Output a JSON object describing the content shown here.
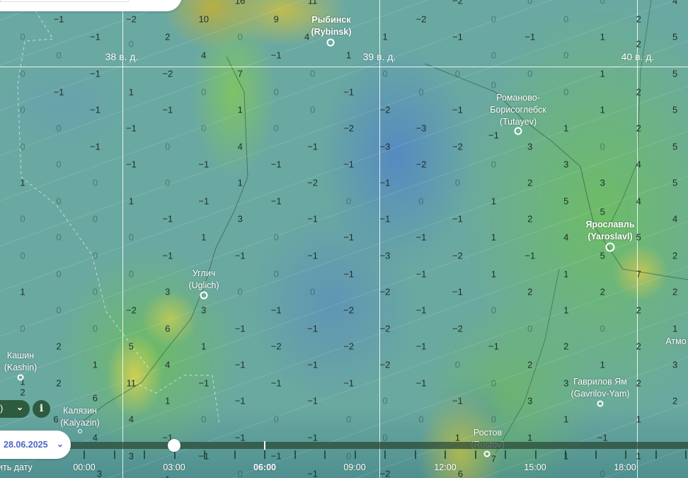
{
  "map": {
    "longitude_labels": [
      "38 в. д.",
      "39 в. д.",
      "40 в. д."
    ],
    "cities": [
      {
        "name": "Рыбинск",
        "latin": "(Rybinsk)",
        "major": true
      },
      {
        "name": "Романово-\nБорисоглебск",
        "latin": "(Tutayev)",
        "major": false
      },
      {
        "name": "Ярославль",
        "latin": "(Yaroslavl)",
        "major": true
      },
      {
        "name": "Углич",
        "latin": "(Uglich)",
        "major": false
      },
      {
        "name": "Кашин",
        "latin": "(Kashin)",
        "major": false
      },
      {
        "name": "Калязин",
        "latin": "(Kalyazin)",
        "major": false
      },
      {
        "name": "Гаврилов Ям",
        "latin": "(Gavrilov-Yam)",
        "major": false
      },
      {
        "name": "Ростов",
        "latin": "(Rostov)",
        "major": false
      },
      {
        "name": "Атмо",
        "latin": "",
        "major": false
      }
    ],
    "values_grid": [
      [
        "",
        "",
        "",
        "16",
        "11",
        "",
        "−2",
        "0",
        "0",
        "4"
      ],
      [
        "−1",
        "−2",
        "10",
        "9",
        "",
        "−2",
        "0",
        "0",
        "2"
      ],
      [
        "0",
        "−1",
        "2",
        "0",
        "4",
        "1",
        "−1",
        "−1",
        "1",
        "5"
      ],
      [
        "0",
        "0",
        "4",
        "−1",
        "1",
        "",
        "0",
        "0",
        "2"
      ],
      [
        "0",
        "−1",
        "−2",
        "7",
        "0",
        "0",
        "0",
        "0",
        "1",
        "5"
      ],
      [
        "−1",
        "1",
        "0",
        "0",
        "−1",
        "0",
        "0",
        "0",
        "2"
      ],
      [
        "0",
        "−1",
        "−1",
        "1",
        "0",
        "−2",
        "−1",
        "",
        "1",
        "5"
      ],
      [
        "0",
        "−1",
        "0",
        "0",
        "−2",
        "−3",
        "−1",
        "1",
        "2"
      ],
      [
        "0",
        "−1",
        "0",
        "4",
        "−1",
        "−3",
        "−2",
        "3",
        "0",
        "5"
      ],
      [
        "0",
        "−1",
        "−1",
        "−1",
        "−1",
        "−2",
        "0",
        "3",
        "4"
      ],
      [
        "1",
        "0",
        "0",
        "1",
        "−2",
        "−1",
        "0",
        "2",
        "3",
        "5"
      ],
      [
        "0",
        "1",
        "−1",
        "−1",
        "0",
        "0",
        "1",
        "5",
        "4"
      ],
      [
        "0",
        "0",
        "−1",
        "3",
        "−1",
        "−1",
        "−1",
        "2",
        "5",
        "4"
      ],
      [
        "0",
        "0",
        "1",
        "0",
        "−1",
        "−1",
        "1",
        "4",
        "5"
      ],
      [
        "0",
        "0",
        "−1",
        "−1",
        "−1",
        "−3",
        "−2",
        "−1",
        "5",
        "2"
      ],
      [
        "0",
        "0",
        "",
        "0",
        "−1",
        "−1",
        "1",
        "1",
        "7"
      ],
      [
        "1",
        "0",
        "3",
        "0",
        "0",
        "−2",
        "−1",
        "2",
        "2",
        "2"
      ],
      [
        "0",
        "−2",
        "3",
        "−1",
        "−2",
        "−1",
        "0",
        "1",
        "2"
      ],
      [
        "0",
        "0",
        "6",
        "−1",
        "−1",
        "−2",
        "−2",
        "0",
        "0",
        "1"
      ],
      [
        "2",
        "5",
        "1",
        "−2",
        "−2",
        "−1",
        "−1",
        "2",
        "2"
      ],
      [
        "1",
        "1",
        "4",
        "−1",
        "−1",
        "−2",
        "0",
        "2",
        "1",
        "3"
      ],
      [
        "2",
        "11",
        "−1",
        "−1",
        "−1",
        "−1",
        "0",
        "3",
        "2"
      ],
      [
        "2",
        "6",
        "1",
        "−1",
        "−1",
        "0",
        "−1",
        "3",
        "",
        "2"
      ],
      [
        "6",
        "4",
        "0",
        "0",
        "0",
        "0",
        "0",
        "1",
        "1"
      ],
      [
        "",
        "4",
        "−1",
        "−1",
        "−1",
        "0",
        "1",
        "1",
        "−1",
        ""
      ],
      [
        "",
        "3",
        "−1",
        "−1",
        "0",
        "",
        "7",
        "1",
        "1"
      ],
      [
        "",
        "3",
        "1",
        "0",
        "−1",
        "−2",
        "6",
        "",
        "0",
        ""
      ]
    ]
  },
  "controls": {
    "layer_selector_label": ")",
    "layer_selector_chevron": "⌄",
    "info_label": "i",
    "date": "28.06.2025",
    "date_chevron": "⌄",
    "change_date_label": "ить дату"
  },
  "timeline": {
    "hour_labels": [
      "00:00",
      "03:00",
      "06:00",
      "09:00",
      "12:00",
      "15:00",
      "18:00"
    ],
    "current_hour": "06:00",
    "selected_hour": "03:00"
  },
  "colors": {
    "accent": "#4a66c8",
    "panel_dark": "#2e5a3e",
    "search_button": "#4a6ee0"
  }
}
